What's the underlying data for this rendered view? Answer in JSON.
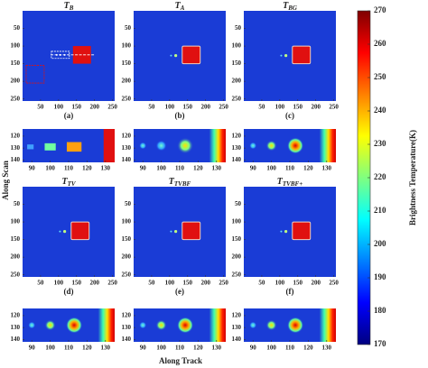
{
  "chart_data": {
    "type": "heatmap",
    "y_label": "Along Scan",
    "x_label": "Along Track",
    "panel_xlim": [
      0,
      256
    ],
    "panel_ylim": [
      0,
      256
    ],
    "panel_xticks": [
      50,
      100,
      150,
      200,
      250
    ],
    "panel_yticks": [
      50,
      100,
      150,
      200,
      250
    ],
    "zoom_xlim": [
      85,
      135
    ],
    "zoom_ylim": [
      114,
      142
    ],
    "zoom_xticks": [
      90,
      100,
      110,
      120,
      130
    ],
    "zoom_yticks": [
      120,
      130,
      140
    ],
    "panels": [
      {
        "title": "T",
        "subscript": "B",
        "label": "(a)"
      },
      {
        "title": "T",
        "subscript": "A",
        "label": "(b)"
      },
      {
        "title": "T",
        "subscript": "BG",
        "label": "(c)"
      },
      {
        "title": "T",
        "subscript": "TV",
        "label": "(d)"
      },
      {
        "title": "T",
        "subscript": "TVBF",
        "label": "(e)"
      },
      {
        "title": "T",
        "subscript": "TVBF+",
        "label": "(f)"
      }
    ],
    "colorbar": {
      "label": "Brightness Temperature(K)",
      "colormap": "jet",
      "lim": [
        170,
        270
      ],
      "ticks": [
        170,
        180,
        190,
        200,
        210,
        220,
        230,
        240,
        250,
        260,
        270
      ]
    }
  }
}
